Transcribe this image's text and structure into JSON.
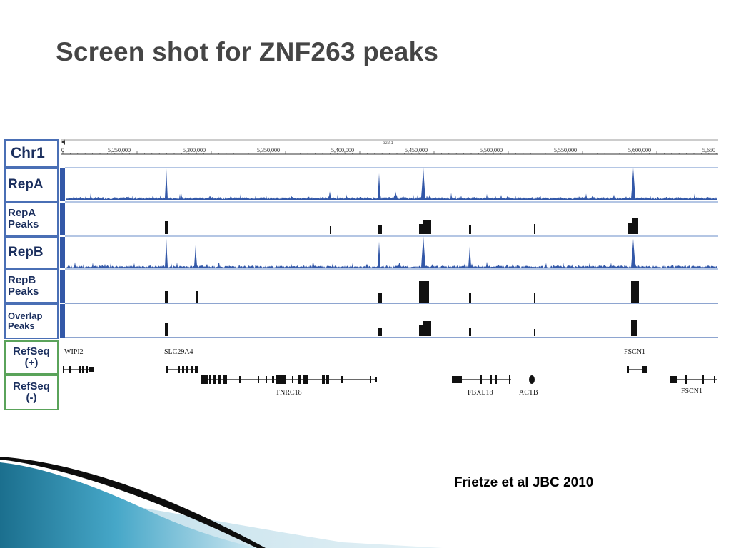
{
  "slide": {
    "title": "Screen shot for ZNF263 peaks",
    "citation": "Frietze et al JBC 2010"
  },
  "browser": {
    "band": "p22.1",
    "ruler_ticks": [
      "0",
      "5,250,000",
      "5,300,000",
      "5,350,000",
      "5,400,000",
      "5,450,000",
      "5,500,000",
      "5,550,000",
      "5,600,000",
      "5,650"
    ],
    "track_labels": {
      "chr": "Chr1",
      "repa": "RepA",
      "repa_peaks_1": "RepA",
      "repa_peaks_2": "Peaks",
      "repb": "RepB",
      "repb_peaks_1": "RepB",
      "repb_peaks_2": "Peaks",
      "overlap_1": "Overlap",
      "overlap_2": "Peaks",
      "refseq_plus_1": "RefSeq",
      "refseq_plus_2": "(+)",
      "refseq_minus_1": "RefSeq",
      "refseq_minus_2": "(-)"
    },
    "genes_plus": [
      "WIPI2",
      "SLC29A4",
      "FSCN1"
    ],
    "genes_minus": [
      "TNRC18",
      "FBXL18",
      "ACTB",
      "FSCN1"
    ],
    "colors": {
      "signal": "#3358a8",
      "peak": "#111111",
      "label_border": "#4a6fb5",
      "refseq_border": "#5aa35a",
      "title": "#454545"
    }
  }
}
